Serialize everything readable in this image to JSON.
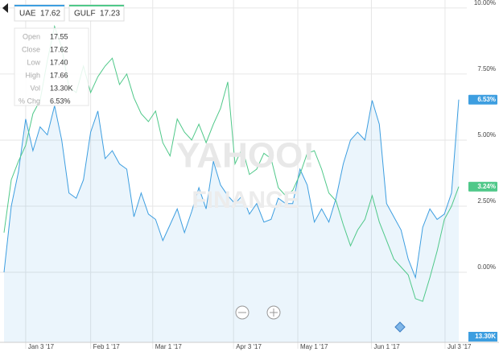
{
  "chart_data": {
    "type": "line",
    "watermark": [
      "YAHOO!",
      "FINANCE"
    ],
    "xlim": [
      0,
      63
    ],
    "xticks": [
      {
        "value": 3,
        "label": "Jan 3 '17"
      },
      {
        "value": 12,
        "label": "Feb 1 '17"
      },
      {
        "value": 20.6,
        "label": "Mar 1 '17"
      },
      {
        "value": 31.8,
        "label": "Apr 3 '17"
      },
      {
        "value": 40.7,
        "label": "May 1 '17"
      },
      {
        "value": 50.9,
        "label": "Jun 1 '17"
      },
      {
        "value": 61.1,
        "label": "Jul 3 '17"
      }
    ],
    "ylim": [
      -2.65,
      10.3
    ],
    "yticks": [
      {
        "value": 0,
        "label": "0.00%"
      },
      {
        "value": 2.5,
        "label": "2.50%"
      },
      {
        "value": 5,
        "label": "5.00%"
      },
      {
        "value": 7.5,
        "label": "7.50%"
      },
      {
        "value": 10,
        "label": "10.00%"
      }
    ],
    "grid": true,
    "series": [
      {
        "name": "UAE",
        "last_price": 17.62,
        "color": "#3d9ee0",
        "area": true,
        "end_label": "6.53%",
        "values": [
          0.0,
          2.5,
          3.8,
          5.8,
          4.6,
          5.5,
          5.2,
          6.3,
          5.0,
          3.0,
          2.8,
          3.5,
          5.3,
          6.1,
          4.3,
          4.6,
          4.1,
          3.9,
          2.1,
          3.0,
          2.2,
          2.0,
          1.2,
          1.8,
          2.4,
          1.5,
          2.3,
          3.2,
          2.4,
          4.2,
          3.3,
          2.9,
          2.6,
          2.9,
          2.2,
          2.6,
          1.9,
          2.0,
          2.8,
          2.6,
          2.6,
          3.9,
          3.3,
          1.9,
          2.4,
          1.9,
          2.8,
          4.1,
          5.0,
          5.3,
          5.0,
          6.5,
          5.6,
          2.6,
          2.1,
          1.6,
          0.5,
          -0.2,
          1.7,
          2.4,
          2.0,
          2.2,
          3.0,
          6.53
        ]
      },
      {
        "name": "GULF",
        "last_price": 17.23,
        "color": "#4fc889",
        "area": false,
        "end_label": "3.24%",
        "values": [
          1.5,
          3.5,
          4.2,
          4.8,
          6.0,
          6.5,
          8.0,
          9.3,
          8.5,
          7.0,
          6.8,
          7.8,
          6.8,
          7.4,
          7.8,
          8.1,
          7.1,
          7.5,
          6.6,
          6.0,
          5.7,
          6.1,
          4.9,
          4.4,
          5.8,
          5.3,
          5.0,
          5.6,
          4.9,
          5.6,
          6.2,
          7.2,
          4.1,
          4.7,
          3.7,
          3.9,
          4.5,
          4.3,
          3.2,
          2.9,
          3.1,
          3.7,
          4.5,
          4.6,
          3.9,
          3.0,
          2.7,
          1.8,
          1.0,
          1.6,
          2.0,
          2.9,
          1.9,
          1.2,
          0.5,
          0.2,
          -0.1,
          -1.0,
          -1.1,
          -0.2,
          0.8,
          2.0,
          2.5,
          3.24
        ]
      }
    ],
    "tooltip": [
      {
        "label": "Open",
        "value": "17.55"
      },
      {
        "label": "Close",
        "value": "17.62"
      },
      {
        "label": "Low",
        "value": "17.40"
      },
      {
        "label": "High",
        "value": "17.66"
      },
      {
        "label": "Vol",
        "value": "13.30K"
      },
      {
        "label": "% Chg",
        "value": "6.53%"
      }
    ],
    "volume_label": "13.30K"
  }
}
